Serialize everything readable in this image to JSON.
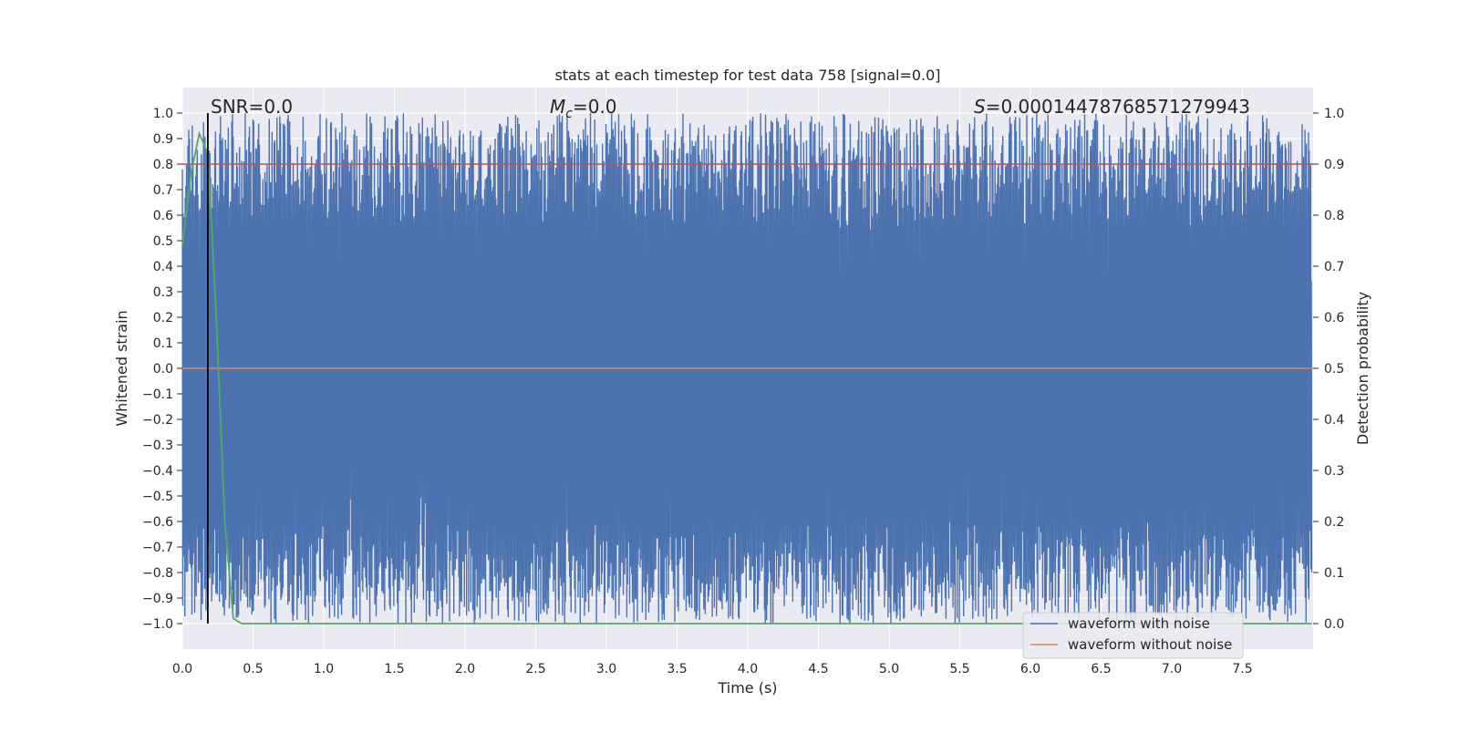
{
  "chart_data": {
    "type": "line",
    "title": "stats at each timestep for test data 758 [signal=0.0]",
    "xlabel": "Time (s)",
    "ylabel_left": "Whitened strain",
    "ylabel_right": "Detection probability",
    "xlim": [
      0.0,
      8.0
    ],
    "ylim_left": [
      -1.1,
      1.1
    ],
    "ylim_right": [
      -0.05,
      1.05
    ],
    "x_ticks": [
      "0.0",
      "0.5",
      "1.0",
      "1.5",
      "2.0",
      "2.5",
      "3.0",
      "3.5",
      "4.0",
      "4.5",
      "5.0",
      "5.5",
      "6.0",
      "6.5",
      "7.0",
      "7.5"
    ],
    "y_left_ticks": [
      "1.0",
      "0.9",
      "0.8",
      "0.7",
      "0.6",
      "0.5",
      "0.4",
      "0.3",
      "0.2",
      "0.1",
      "0.0",
      "−0.1",
      "−0.2",
      "−0.3",
      "−0.4",
      "−0.5",
      "−0.6",
      "−0.7",
      "−0.8",
      "−0.9",
      "−1.0"
    ],
    "y_right_ticks": [
      "1.0",
      "0.9",
      "0.8",
      "0.7",
      "0.6",
      "0.5",
      "0.4",
      "0.3",
      "0.2",
      "0.1",
      "0.0"
    ],
    "grid": true,
    "annotations": {
      "snr_prefix": "SNR=",
      "snr_value": "0.0",
      "mc_symbol": "M",
      "mc_sub": "c",
      "mc_value": "=0.0",
      "s_symbol": "S",
      "s_value": "=0.00014478768571279943"
    },
    "marker_line_x": 0.18,
    "threshold_right": 0.9,
    "legend": {
      "placement": "lower-right",
      "entries": [
        "waveform with noise",
        "waveform without noise"
      ]
    },
    "series": [
      {
        "name": "waveform with noise",
        "color": "#4c72b0",
        "description_range": [
          -1.0,
          1.0
        ],
        "x_range": [
          0.0,
          7.99
        ]
      },
      {
        "name": "waveform without noise",
        "color": "#dd8452",
        "constant_value": 0.0
      },
      {
        "name": "detection probability",
        "color": "#55a868",
        "x": [
          0.0,
          0.06,
          0.12,
          0.18,
          0.24,
          0.3,
          0.36,
          0.42,
          1.0,
          2.0,
          3.0,
          4.0,
          5.0,
          6.0,
          7.0,
          7.99
        ],
        "y": [
          0.74,
          0.88,
          0.96,
          0.92,
          0.6,
          0.2,
          0.01,
          0.0,
          0.0,
          0.0,
          0.0,
          0.0,
          0.0,
          0.0,
          0.0,
          0.0
        ]
      }
    ],
    "colors": {
      "plot_bg": "#eaeaf2",
      "grid": "#ffffff",
      "noise": "#4c72b0",
      "clean": "#dd8452",
      "prob": "#55a868",
      "threshold": "#c44e52",
      "marker": "#000000"
    }
  }
}
